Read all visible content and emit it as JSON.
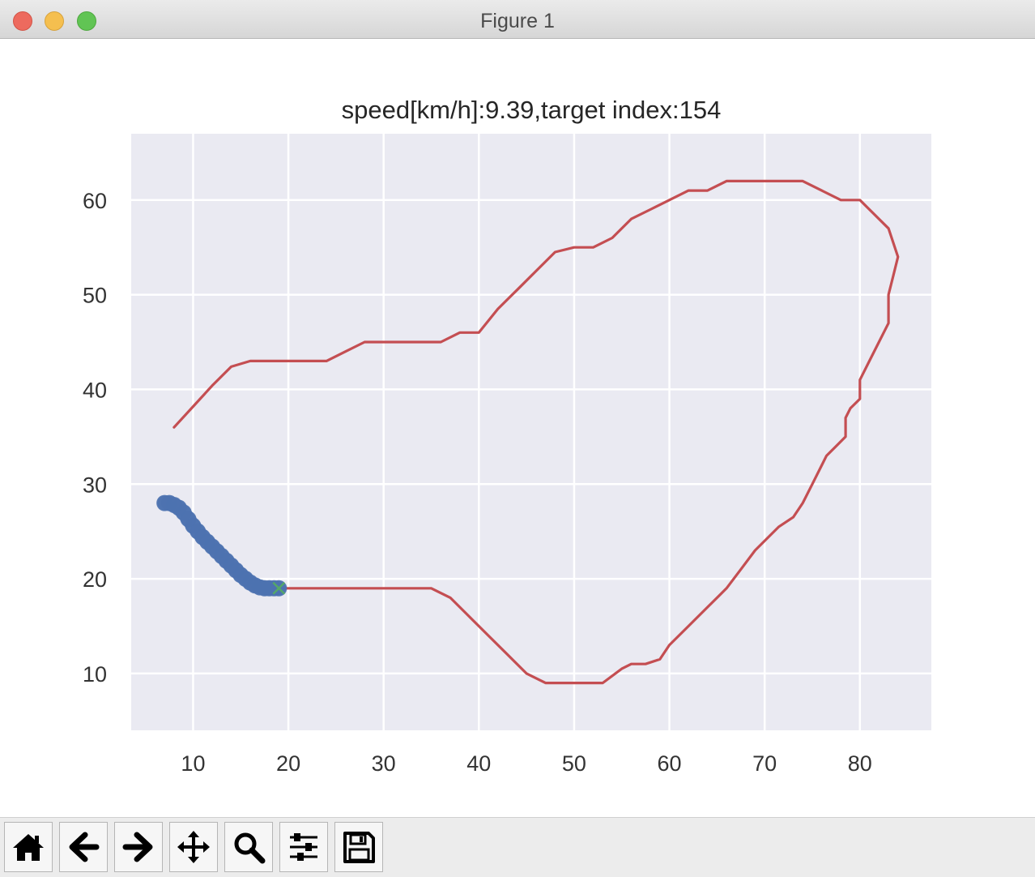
{
  "window": {
    "title": "Figure 1"
  },
  "toolbar": {
    "buttons": [
      {
        "name": "home-button",
        "icon": "home-icon"
      },
      {
        "name": "back-button",
        "icon": "arrow-left-icon"
      },
      {
        "name": "forward-button",
        "icon": "arrow-right-icon"
      },
      {
        "name": "pan-button",
        "icon": "move-icon"
      },
      {
        "name": "zoom-button",
        "icon": "magnifier-icon"
      },
      {
        "name": "configure-subplots-button",
        "icon": "sliders-icon"
      },
      {
        "name": "save-button",
        "icon": "floppy-disk-icon"
      }
    ]
  },
  "chart_data": {
    "type": "line",
    "title": "speed[km/h]:9.39,target index:154",
    "xlabel": "",
    "ylabel": "",
    "xlim": [
      3.5,
      87.5
    ],
    "ylim": [
      4,
      67
    ],
    "xticks": [
      10,
      20,
      30,
      40,
      50,
      60,
      70,
      80
    ],
    "yticks": [
      10,
      20,
      30,
      40,
      50,
      60
    ],
    "grid": true,
    "colors": {
      "background": "#eaeaf2",
      "grid": "#ffffff",
      "course": "#c44e52",
      "trajectory": "#4c72b0",
      "target": "#55a868"
    },
    "series": [
      {
        "role": "course",
        "style": "line",
        "points": [
          [
            8,
            36
          ],
          [
            10,
            38.2
          ],
          [
            12,
            40.4
          ],
          [
            14,
            42.4
          ],
          [
            16,
            43
          ],
          [
            18,
            43
          ],
          [
            20,
            43
          ],
          [
            22,
            43
          ],
          [
            24,
            43
          ],
          [
            26,
            44
          ],
          [
            28,
            45
          ],
          [
            30,
            45
          ],
          [
            34,
            45
          ],
          [
            36,
            45
          ],
          [
            38,
            46
          ],
          [
            40,
            46
          ],
          [
            42,
            48.5
          ],
          [
            44,
            50.5
          ],
          [
            46,
            52.5
          ],
          [
            48,
            54.5
          ],
          [
            50,
            55
          ],
          [
            52,
            55
          ],
          [
            54,
            56
          ],
          [
            56,
            58
          ],
          [
            58,
            59
          ],
          [
            60,
            60
          ],
          [
            62,
            61
          ],
          [
            64,
            61
          ],
          [
            66,
            62
          ],
          [
            68,
            62
          ],
          [
            70,
            62
          ],
          [
            74,
            62
          ],
          [
            76,
            61
          ],
          [
            78,
            60
          ],
          [
            80,
            60
          ],
          [
            81.5,
            58.5
          ],
          [
            83,
            57
          ],
          [
            84,
            54
          ],
          [
            83.5,
            52
          ],
          [
            83,
            50
          ],
          [
            83,
            47
          ],
          [
            82,
            45
          ],
          [
            81,
            43
          ],
          [
            80,
            41
          ],
          [
            80,
            39
          ],
          [
            79,
            38
          ],
          [
            78.5,
            37
          ],
          [
            78.5,
            35
          ],
          [
            77.5,
            34
          ],
          [
            76.5,
            33
          ],
          [
            75,
            30
          ],
          [
            74,
            28
          ],
          [
            73,
            26.5
          ],
          [
            71.5,
            25.5
          ],
          [
            70,
            24
          ],
          [
            69,
            23
          ],
          [
            67.5,
            21
          ],
          [
            66,
            19
          ],
          [
            64,
            17
          ],
          [
            62,
            15
          ],
          [
            60,
            13
          ],
          [
            59,
            11.5
          ],
          [
            57.5,
            11
          ],
          [
            56,
            11
          ],
          [
            55,
            10.5
          ],
          [
            53,
            9
          ],
          [
            51,
            9
          ],
          [
            49,
            9
          ],
          [
            47,
            9
          ],
          [
            45,
            10
          ],
          [
            43,
            12
          ],
          [
            41,
            14
          ],
          [
            39,
            16
          ],
          [
            37,
            18
          ],
          [
            35,
            19
          ],
          [
            33,
            19
          ],
          [
            30,
            19
          ],
          [
            25,
            19
          ],
          [
            22,
            19
          ],
          [
            20,
            19
          ],
          [
            19.5,
            19
          ]
        ]
      },
      {
        "role": "trajectory",
        "style": "markers",
        "points": [
          [
            7,
            28
          ],
          [
            7.5,
            28
          ],
          [
            8,
            27.8
          ],
          [
            8.5,
            27.5
          ],
          [
            9,
            27
          ],
          [
            9.5,
            26.3
          ],
          [
            10,
            25.6
          ],
          [
            10.5,
            25
          ],
          [
            11,
            24.4
          ],
          [
            11.5,
            23.9
          ],
          [
            12,
            23.4
          ],
          [
            12.5,
            22.9
          ],
          [
            13,
            22.4
          ],
          [
            13.5,
            21.9
          ],
          [
            14,
            21.4
          ],
          [
            14.5,
            20.9
          ],
          [
            15,
            20.4
          ],
          [
            15.5,
            20
          ],
          [
            16,
            19.6
          ],
          [
            16.5,
            19.3
          ],
          [
            17,
            19.1
          ],
          [
            17.5,
            19
          ],
          [
            18,
            19
          ],
          [
            18.5,
            19
          ],
          [
            19,
            19
          ]
        ]
      },
      {
        "role": "target",
        "style": "x-marker",
        "points": [
          [
            19,
            19
          ]
        ]
      }
    ]
  }
}
